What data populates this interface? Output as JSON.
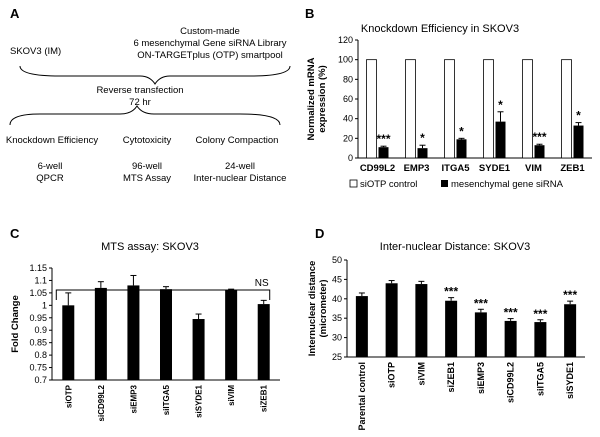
{
  "panelA": {
    "label": "A",
    "cell_line": "SKOV3 (IM)",
    "library_line1": "Custom-made",
    "library_line2": "6 mesenchymal Gene siRNA Library",
    "library_line3": "ON-TARGETplus (OTP) smartpool",
    "transfection_line1": "Reverse transfection",
    "transfection_line2": "72 hr",
    "assays": [
      {
        "title": "Knockdown Efficiency",
        "format": "6-well",
        "method": "QPCR"
      },
      {
        "title": "Cytotoxicity",
        "format": "96-well",
        "method": "MTS Assay"
      },
      {
        "title": "Colony Compaction",
        "format": "24-well",
        "method": "Inter-nuclear Distance"
      }
    ]
  },
  "chart_data": [
    {
      "panel": "B",
      "type": "bar",
      "title": "Knockdown Efficiency in SKOV3",
      "ylabel": "Normalized mRNA expression (%)",
      "xlabel": "",
      "ylim": [
        0,
        120
      ],
      "yticks": [
        0,
        20,
        40,
        60,
        80,
        100,
        120
      ],
      "categories": [
        "CD99L2",
        "EMP3",
        "ITGA5",
        "SYDE1",
        "VIM",
        "ZEB1"
      ],
      "series": [
        {
          "name": "siOTP control",
          "values": [
            100,
            100,
            100,
            100,
            100,
            100
          ],
          "errors": [
            0,
            0,
            0,
            0,
            0,
            0
          ],
          "color": "#ffffff"
        },
        {
          "name": "mesenchymal gene siRNA",
          "values": [
            11,
            10,
            19,
            37,
            13,
            33
          ],
          "errors": [
            1,
            3,
            1,
            10,
            1,
            3
          ],
          "color": "#000000"
        }
      ],
      "significance": [
        "***",
        "*",
        "*",
        "*",
        "***",
        "*"
      ],
      "legend": "bottom"
    },
    {
      "panel": "C",
      "type": "bar",
      "title": "MTS assay: SKOV3",
      "ylabel": "Fold Change",
      "xlabel": "",
      "ylim": [
        0.7,
        1.15
      ],
      "yticks": [
        0.7,
        0.75,
        0.8,
        0.85,
        0.9,
        0.95,
        1,
        1.05,
        1.1,
        1.15
      ],
      "categories": [
        "siOTP",
        "siCD99L2",
        "siEMP3",
        "siITGA5",
        "siSYDE1",
        "siVIM",
        "siZEB1"
      ],
      "values": [
        1.0,
        1.07,
        1.08,
        1.065,
        0.945,
        1.06,
        1.005
      ],
      "errors": [
        0.05,
        0.025,
        0.04,
        0.01,
        0.02,
        0.005,
        0.015
      ],
      "bracket_label": "NS"
    },
    {
      "panel": "D",
      "type": "bar",
      "title": "Inter-nuclear Distance: SKOV3",
      "ylabel": "Internuclear distance (micrometer)",
      "xlabel": "",
      "ylim": [
        25,
        50
      ],
      "yticks": [
        25,
        30,
        35,
        40,
        45,
        50
      ],
      "categories": [
        "Parental control",
        "siOTP",
        "siVIM",
        "siZEB1",
        "siEMP3",
        "siCD99L2",
        "siITGA5",
        "siSYDE1"
      ],
      "values": [
        40.7,
        44.0,
        43.8,
        39.5,
        36.5,
        34.3,
        34.0,
        38.6
      ],
      "errors": [
        0.8,
        0.7,
        0.7,
        0.8,
        0.8,
        0.6,
        0.6,
        0.8
      ],
      "significance": [
        "",
        "",
        "",
        "***",
        "***",
        "***",
        "***",
        "***"
      ]
    }
  ]
}
